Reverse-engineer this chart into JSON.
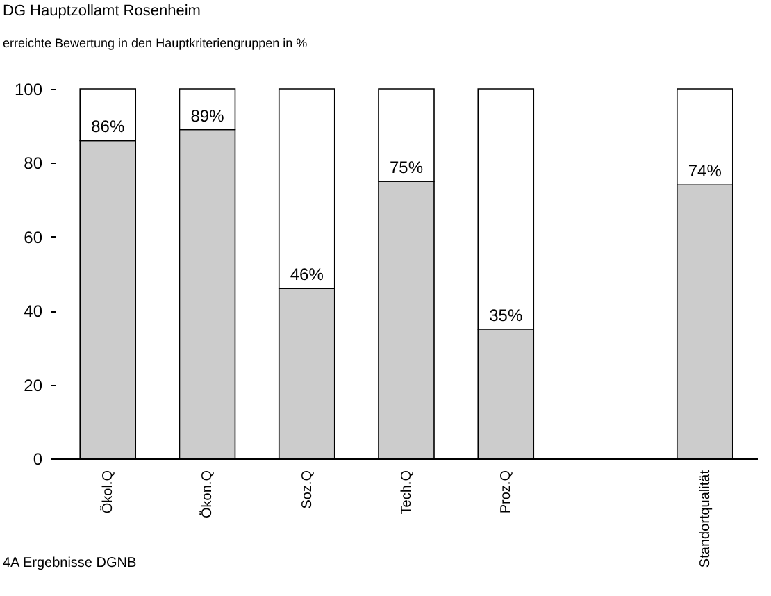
{
  "chart_data": {
    "type": "bar",
    "title": "DG Hauptzollamt Rosenheim",
    "subtitle": "erreichte Bewertung in den Hauptkriteriengruppen in %",
    "categories": [
      "Ökol.Q",
      "Ökon.Q",
      "Soz.Q",
      "Tech.Q",
      "Proz.Q",
      null,
      "Standortqualität"
    ],
    "stacked": true,
    "series": [
      {
        "color": "#cccccc",
        "values": [
          86,
          89,
          46,
          75,
          35,
          null,
          74
        ],
        "value_labels": [
          "86%",
          "89%",
          "46%",
          "75%",
          "35%",
          null,
          "74%"
        ]
      },
      {
        "color": "#ffffff",
        "values": [
          14,
          11,
          54,
          25,
          65,
          null,
          26
        ]
      }
    ],
    "ylim": [
      0,
      100
    ],
    "yticks": [
      0,
      20,
      40,
      60,
      80,
      100
    ],
    "grid": false,
    "legend": false,
    "annotations": [
      "4A Ergebnisse DGNB"
    ]
  }
}
